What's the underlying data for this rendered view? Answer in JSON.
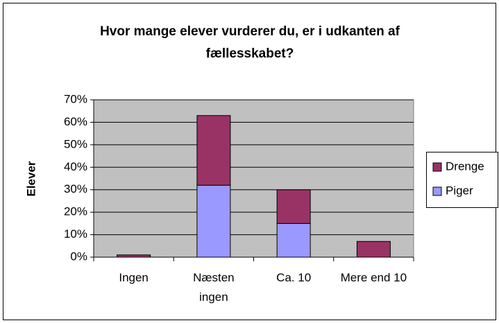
{
  "chart_data": {
    "type": "stacked_bar",
    "title": "Hvor mange elever vurderer du, er i udkanten af fællesskabet?",
    "y_label": "Elever",
    "categories": [
      "Ingen",
      "Næsten ingen",
      "Ca. 10",
      "Mere end 10"
    ],
    "series": [
      {
        "name": "Piger",
        "color": "#9999ff",
        "values": [
          0,
          32,
          15,
          0
        ]
      },
      {
        "name": "Drenge",
        "color": "#993366",
        "values": [
          1,
          31,
          15,
          7
        ]
      }
    ],
    "ylim": [
      0,
      70
    ],
    "yticks": [
      {
        "value": 0,
        "label": "0%"
      },
      {
        "value": 10,
        "label": "10%"
      },
      {
        "value": 20,
        "label": "20%"
      },
      {
        "value": 30,
        "label": "30%"
      },
      {
        "value": 40,
        "label": "40%"
      },
      {
        "value": 50,
        "label": "50%"
      },
      {
        "value": 60,
        "label": "60%"
      },
      {
        "value": 70,
        "label": "70%"
      }
    ],
    "grid": true,
    "legend": "right"
  }
}
